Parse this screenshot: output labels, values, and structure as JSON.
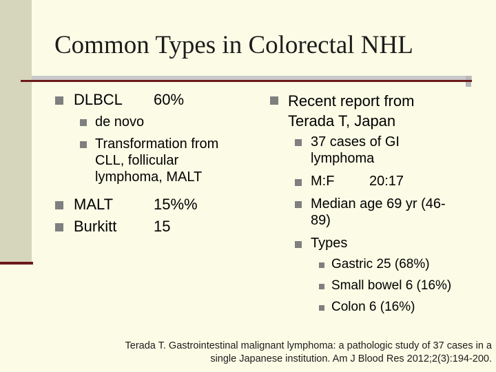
{
  "slide": {
    "title": "Common Types in Colorectal NHL",
    "left": {
      "dlbcl": {
        "label": "DLBCL",
        "value": "60%"
      },
      "dlbcl_sub": [
        "de novo"
      ],
      "transformation": [
        "Transformation from",
        "CLL, follicular",
        "lymphoma, MALT"
      ],
      "malt": {
        "label": "MALT",
        "value": "15%%"
      },
      "burkitt": {
        "label": "Burkitt",
        "value": "15"
      }
    },
    "right": {
      "report": [
        "Recent report from",
        "Terada T, Japan"
      ],
      "cases": [
        "37 cases of GI",
        "lymphoma"
      ],
      "ratio": {
        "label": "M:F",
        "value": "20:17"
      },
      "age": [
        "Median age 69 yr (46-",
        "89)"
      ],
      "types_label": "Types",
      "types": [
        "Gastric 25 (68%)",
        "Small bowel 6 (16%)",
        "Colon 6 (16%)"
      ]
    },
    "reference": [
      "Terada T. Gastrointestinal malignant lymphoma: a pathologic study of 37 cases in a",
      "single Japanese institution. Am J Blood Res 2012;2(3):194-200."
    ]
  },
  "colors": {
    "background": "#fbfbe6",
    "accent_rule": "#6b1a1a",
    "bullet": "#7f7f7f"
  }
}
